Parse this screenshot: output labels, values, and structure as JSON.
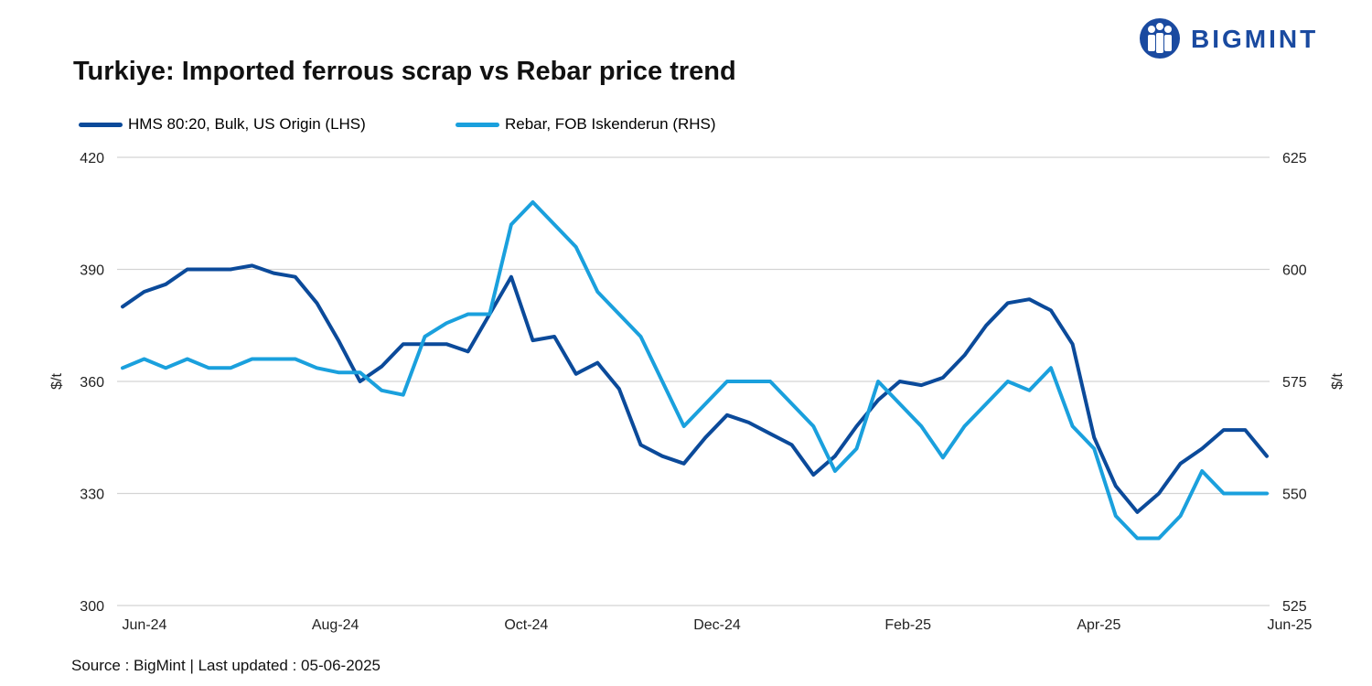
{
  "logo": {
    "text": "BIGMINT",
    "color": "#1a4aa0"
  },
  "footer": {
    "source": "Source : BigMint | Last updated : 05-06-2025"
  },
  "colors": {
    "series1": "#0b4a9a",
    "series2": "#1aa0dd",
    "grid": "#d4d4d4"
  },
  "chart_data": {
    "type": "line",
    "title": "Turkiye: Imported ferrous scrap vs Rebar price trend",
    "ylabel": "$/t",
    "y2label": "$/t",
    "ylim": [
      300,
      420
    ],
    "y2lim": [
      525,
      625
    ],
    "yticks": [
      300,
      330,
      360,
      390,
      420
    ],
    "y2ticks": [
      525,
      550,
      575,
      600,
      625
    ],
    "xticklabels": [
      "Jun-24",
      "Aug-24",
      "Oct-24",
      "Dec-24",
      "Feb-25",
      "Apr-25",
      "Jun-25"
    ],
    "legend": "top-left",
    "series": [
      {
        "name": "HMS 80:20, Bulk, US Origin (LHS)",
        "axis": "left",
        "values": [
          380,
          384,
          386,
          390,
          390,
          390,
          391,
          389,
          388,
          381,
          371,
          360,
          364,
          370,
          370,
          370,
          368,
          378,
          388,
          371,
          372,
          362,
          365,
          358,
          343,
          340,
          338,
          345,
          351,
          349,
          346,
          343,
          335,
          340,
          348,
          355,
          360,
          359,
          361,
          367,
          375,
          381,
          382,
          379,
          370,
          345,
          332,
          325,
          330,
          338,
          342,
          347,
          347,
          340
        ]
      },
      {
        "name": "Rebar, FOB Iskenderun (RHS)",
        "axis": "right",
        "values": [
          578,
          580,
          578,
          580,
          578,
          578,
          580,
          580,
          580,
          578,
          577,
          577,
          573,
          572,
          585,
          588,
          590,
          590,
          610,
          615,
          610,
          605,
          595,
          590,
          585,
          575,
          565,
          570,
          575,
          575,
          575,
          570,
          565,
          555,
          560,
          575,
          570,
          565,
          558,
          565,
          570,
          575,
          573,
          578,
          565,
          560,
          545,
          540,
          540,
          545,
          555,
          550,
          550,
          550
        ]
      }
    ]
  }
}
